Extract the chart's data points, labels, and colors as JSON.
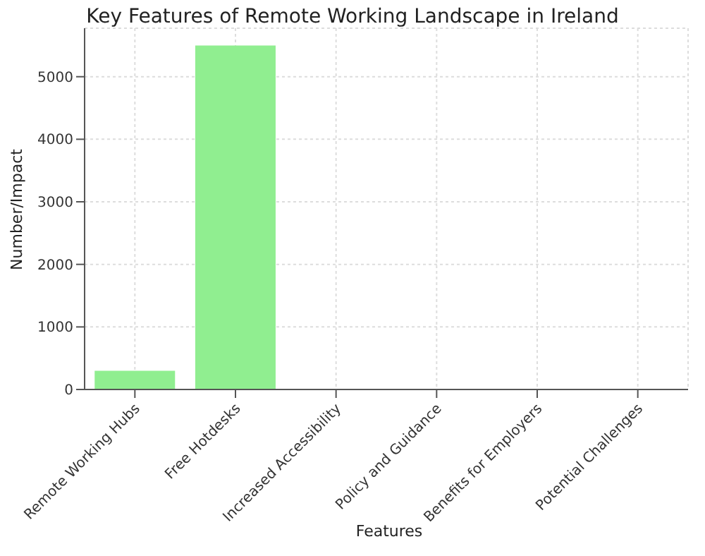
{
  "chart_data": {
    "type": "bar",
    "title": "Key Features of Remote Working Landscape in Ireland",
    "xlabel": "Features",
    "ylabel": "Number/Impact",
    "categories": [
      "Remote Working Hubs",
      "Free Hotdesks",
      "Increased Accessibility",
      "Policy and Guidance",
      "Benefits for Employers",
      "Potential Challenges"
    ],
    "values": [
      300,
      5500,
      0,
      0,
      0,
      0
    ],
    "color": "#90ee90",
    "ylim": [
      0,
      5775
    ],
    "yticks": [
      0,
      1000,
      2000,
      3000,
      4000,
      5000
    ],
    "grid": true
  }
}
